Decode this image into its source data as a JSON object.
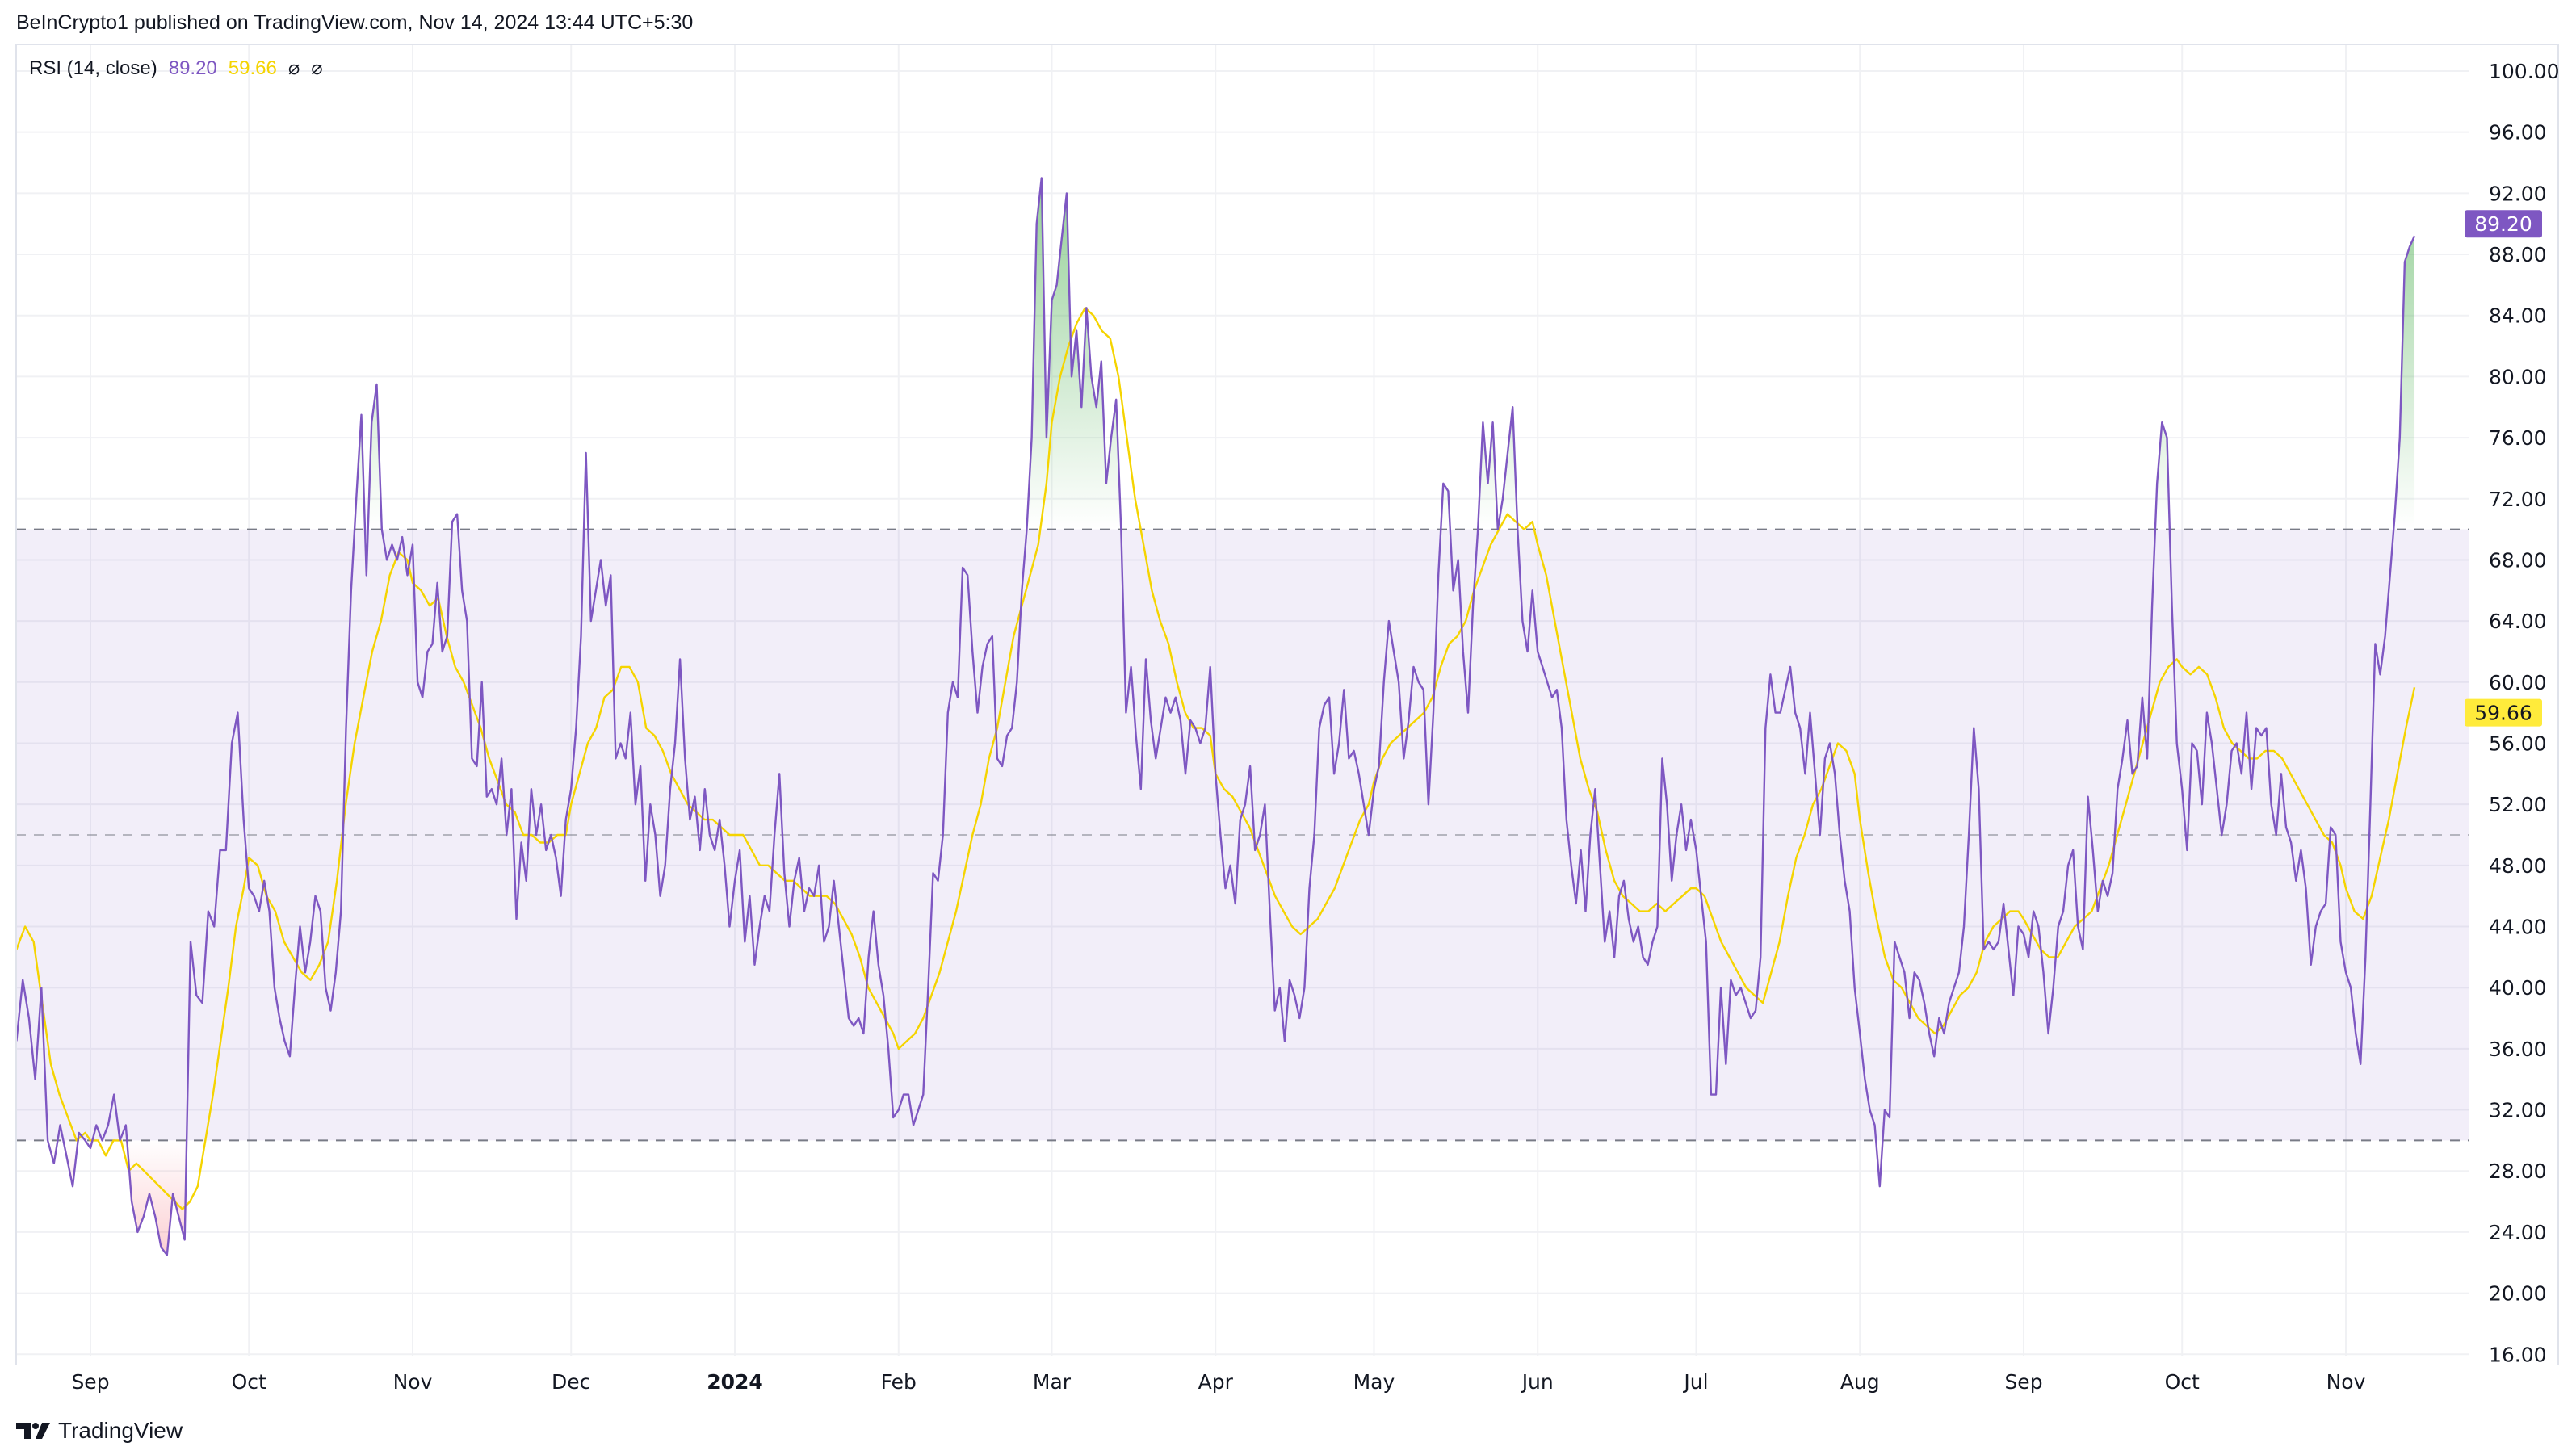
{
  "header": {
    "text": "BeInCrypto1 published on TradingView.com, Nov 14, 2024 13:44 UTC+5:30"
  },
  "legend": {
    "title": "RSI (14, close)",
    "rsi_value": "89.20",
    "ma_value": "59.66",
    "symbols": [
      "⌀",
      "⌀"
    ]
  },
  "logo": {
    "text": "TradingView",
    "icon": "tradingview-logo-icon"
  },
  "colors": {
    "rsi": "#7e57c2",
    "ma": "#f5d400",
    "band": "#7e57c2",
    "overbought_fill": "#4caf50",
    "oversold_fill": "#f23645",
    "grid": "#f0f1f4"
  },
  "chart_data": {
    "type": "line",
    "title": "RSI (14, close)",
    "x_range": [
      "2023-08-18",
      "2024-11-14"
    ],
    "ylim": [
      16,
      100
    ],
    "grid": true,
    "bands": {
      "upper": 70,
      "middle": 50,
      "lower": 30
    },
    "y_ticks": [
      "100.00",
      "96.00",
      "92.00",
      "88.00",
      "84.00",
      "80.00",
      "76.00",
      "72.00",
      "68.00",
      "64.00",
      "60.00",
      "56.00",
      "52.00",
      "48.00",
      "44.00",
      "40.00",
      "36.00",
      "32.00",
      "28.00",
      "24.00",
      "20.00",
      "16.00"
    ],
    "x_ticks": [
      {
        "label": "Sep",
        "date": "2023-09-01"
      },
      {
        "label": "Oct",
        "date": "2023-10-01"
      },
      {
        "label": "Nov",
        "date": "2023-11-01"
      },
      {
        "label": "Dec",
        "date": "2023-12-01"
      },
      {
        "label": "2024",
        "date": "2024-01-01",
        "bold": true
      },
      {
        "label": "Feb",
        "date": "2024-02-01"
      },
      {
        "label": "Mar",
        "date": "2024-03-01"
      },
      {
        "label": "Apr",
        "date": "2024-04-01"
      },
      {
        "label": "May",
        "date": "2024-05-01"
      },
      {
        "label": "Jun",
        "date": "2024-06-01"
      },
      {
        "label": "Jul",
        "date": "2024-07-01"
      },
      {
        "label": "Aug",
        "date": "2024-08-01"
      },
      {
        "label": "Sep",
        "date": "2024-09-01"
      },
      {
        "label": "Oct",
        "date": "2024-10-01"
      },
      {
        "label": "Nov",
        "date": "2024-11-01"
      }
    ],
    "last_values": {
      "rsi": "89.20",
      "ma": "59.66"
    },
    "series": [
      {
        "key": "rsi",
        "monthly": [
          {
            "month": "2023-08",
            "values": [
              36.5,
              40.5,
              38,
              34,
              40,
              30,
              28.5,
              31,
              29,
              27,
              30.5,
              30
            ]
          },
          {
            "month": "2023-09",
            "values": [
              29.5,
              31,
              30,
              31,
              33,
              30,
              31,
              26,
              24,
              25,
              26.5,
              25,
              23,
              22.5,
              26.5,
              25,
              23.5,
              43,
              39.5,
              39,
              45,
              44,
              49,
              49,
              56,
              58,
              51
            ]
          },
          {
            "month": "2023-10",
            "values": [
              46.5,
              46,
              45,
              47,
              45,
              40,
              38,
              36.5,
              35.5,
              40,
              44,
              41,
              43,
              46,
              45,
              40,
              38.5,
              41,
              45,
              57,
              66,
              72,
              77.5,
              67,
              77,
              79.5,
              70,
              68,
              69,
              68,
              69.5,
              67
            ]
          },
          {
            "month": "2023-11",
            "values": [
              69,
              60,
              59,
              62,
              62.5,
              66.5,
              62,
              63,
              70.5,
              71,
              66,
              64,
              55,
              54.5,
              60,
              52.5,
              53,
              52,
              55,
              50,
              53,
              44.5,
              49.5,
              47,
              53,
              50,
              52,
              49,
              50,
              48.5,
              46,
              51
            ]
          },
          {
            "month": "2023-12",
            "values": [
              53,
              57,
              63,
              75,
              64,
              66,
              68,
              65,
              67,
              55,
              56,
              55,
              58,
              52,
              54.5,
              47,
              52,
              50,
              46,
              48,
              53,
              56,
              61.5,
              55,
              51,
              52.5,
              49,
              53,
              50,
              49,
              51,
              48,
              44
            ]
          },
          {
            "month": "2024-01",
            "values": [
              47,
              49,
              43,
              46,
              41.5,
              44,
              46,
              45,
              50,
              54,
              47.5,
              44,
              47,
              48.5,
              45,
              46.5,
              46,
              48,
              43,
              44,
              47,
              44,
              41,
              38,
              37.5,
              38,
              37,
              42,
              45,
              41.5,
              39.5,
              36,
              31.5
            ]
          },
          {
            "month": "2024-02",
            "values": [
              32,
              33,
              33,
              31,
              32,
              33,
              40,
              47.5,
              47,
              50,
              58,
              60,
              59,
              67.5,
              67,
              62,
              58,
              61,
              62.5,
              63,
              55,
              54.5,
              56.5,
              57,
              60,
              66,
              70,
              76,
              90,
              93,
              76
            ]
          },
          {
            "month": "2024-03",
            "values": [
              85,
              86,
              89,
              92,
              80,
              83,
              78,
              84.5,
              80,
              78,
              81,
              73,
              76,
              78.5,
              70,
              58,
              61,
              56.5,
              53,
              61.5,
              57.5,
              55,
              57,
              59,
              58,
              59,
              57.5,
              54,
              57.5,
              57,
              56,
              57,
              61
            ]
          },
          {
            "month": "2024-04",
            "values": [
              54,
              50,
              46.5,
              48,
              45.5,
              51,
              52,
              54.5,
              49,
              50,
              52,
              45,
              38.5,
              40,
              36.5,
              40.5,
              39.5,
              38,
              40,
              46.5,
              50,
              57,
              58.5,
              59,
              54,
              56,
              59.5,
              55,
              55.5,
              54,
              52,
              50
            ]
          },
          {
            "month": "2024-05",
            "values": [
              53,
              54.5,
              60,
              64,
              62,
              60,
              55,
              57.5,
              61,
              60,
              59.5,
              52,
              58,
              67,
              73,
              72.5,
              66,
              68,
              62,
              58,
              65,
              70,
              77,
              73,
              77,
              70,
              72,
              75,
              78,
              70,
              64,
              62,
              66
            ]
          },
          {
            "month": "2024-06",
            "values": [
              62,
              61,
              60,
              59,
              59.5,
              57,
              51,
              48,
              45.5,
              49,
              45,
              50,
              53,
              48,
              43,
              45,
              42,
              46,
              47,
              44.5,
              43,
              44,
              42,
              41.5,
              43,
              44,
              55,
              52,
              47,
              50,
              52,
              49,
              51
            ]
          },
          {
            "month": "2024-07",
            "values": [
              49,
              46,
              43,
              33,
              33,
              40,
              35,
              40.5,
              39.5,
              40,
              39,
              38,
              38.5,
              42,
              57,
              60.5,
              58,
              58,
              59.5,
              61,
              58,
              57,
              54,
              58,
              54,
              50,
              55,
              56,
              54,
              50,
              47,
              45,
              40
            ]
          },
          {
            "month": "2024-08",
            "values": [
              37,
              34,
              32,
              31,
              27,
              32,
              31.5,
              43,
              42,
              41,
              38,
              41,
              40.5,
              39,
              37,
              35.5,
              38,
              37,
              39,
              40,
              41,
              44,
              50,
              57,
              53,
              42.5,
              43,
              42.5,
              43,
              45.5,
              42.5,
              39.5,
              44
            ]
          },
          {
            "month": "2024-09",
            "values": [
              43.5,
              42,
              45,
              44,
              41,
              37,
              40,
              44,
              45,
              48,
              49,
              44,
              42.5,
              52.5,
              49,
              45,
              47,
              46,
              47.5,
              53,
              55,
              57.5,
              54,
              54.5,
              59,
              55,
              65,
              73,
              77,
              76,
              65,
              56
            ]
          },
          {
            "month": "2024-10",
            "values": [
              53,
              49,
              56,
              55.5,
              52,
              58,
              56,
              53,
              50,
              52,
              55.5,
              56,
              54,
              58,
              53,
              57,
              56.5,
              57,
              52,
              50,
              54,
              50.5,
              49.5,
              47,
              49,
              46.5,
              41.5,
              44,
              45,
              45.5,
              50.5,
              50,
              43
            ]
          },
          {
            "month": "2024-11",
            "values": [
              41,
              40,
              37,
              35,
              42,
              52,
              62.5,
              60.5,
              63,
              67,
              71,
              76,
              87.5,
              88.5,
              89.2
            ]
          }
        ]
      },
      {
        "key": "ma",
        "monthly": [
          {
            "month": "2023-08",
            "values": [
              42.5,
              44,
              43,
              39,
              35,
              33,
              31.5,
              30,
              30.5
            ]
          },
          {
            "month": "2023-09",
            "values": [
              30,
              30,
              29,
              30,
              30,
              28,
              28.5,
              28,
              27.5,
              27,
              26.5,
              26,
              25.5,
              26,
              27,
              30,
              33,
              36.5,
              40,
              44,
              46.5
            ]
          },
          {
            "month": "2023-10",
            "values": [
              48.5,
              48,
              46,
              45,
              43,
              42,
              41,
              40.5,
              41.5,
              43,
              47,
              52,
              56,
              59,
              62,
              64,
              67,
              68.5,
              68
            ]
          },
          {
            "month": "2023-11",
            "values": [
              66.5,
              66,
              65,
              65.5,
              63,
              61,
              60,
              58.5,
              57,
              55,
              53.5,
              52,
              51.5,
              50,
              50,
              49.5,
              49.5,
              50,
              50
            ]
          },
          {
            "month": "2023-12",
            "values": [
              52,
              54,
              56,
              57,
              59,
              59.5,
              61,
              61,
              60,
              57,
              56.5,
              55.5,
              54,
              53,
              52,
              51.5,
              51,
              51,
              50.5,
              50
            ]
          },
          {
            "month": "2024-01",
            "values": [
              50,
              50,
              49,
              48,
              48,
              47.5,
              47,
              47,
              46.5,
              46,
              46,
              46,
              45.5,
              44.5,
              43.5,
              42,
              40,
              39,
              38,
              37
            ]
          },
          {
            "month": "2024-02",
            "values": [
              36,
              36.5,
              37,
              38,
              39.5,
              41,
              43,
              45,
              47.5,
              50,
              52,
              55,
              57,
              60,
              63,
              65,
              67,
              69,
              73
            ]
          },
          {
            "month": "2024-03",
            "values": [
              77,
              80,
              82,
              83.5,
              84.5,
              84,
              83,
              82.5,
              80,
              76,
              72,
              69,
              66,
              64,
              62.5,
              60,
              58,
              57,
              57,
              56.5
            ]
          },
          {
            "month": "2024-04",
            "values": [
              54,
              53,
              52.5,
              51.5,
              50.5,
              49,
              47.5,
              46,
              45,
              44,
              43.5,
              44,
              44.5,
              45.5,
              46.5,
              48,
              49.5,
              51,
              52
            ]
          },
          {
            "month": "2024-05",
            "values": [
              53.5,
              55,
              56,
              56.5,
              57,
              57.5,
              58,
              59,
              61,
              62.5,
              63,
              64,
              66,
              67.5,
              69,
              70,
              71,
              70.5,
              70,
              70.5
            ]
          },
          {
            "month": "2024-06",
            "values": [
              69,
              67,
              64,
              61,
              58,
              55,
              53,
              51.5,
              49,
              47,
              46,
              45.5,
              45,
              45,
              45.5,
              45,
              45.5,
              46,
              46.5
            ]
          },
          {
            "month": "2024-07",
            "values": [
              46.5,
              46,
              44.5,
              43,
              42,
              41,
              40,
              39.5,
              39,
              41,
              43,
              46,
              48.5,
              50,
              52,
              53,
              54.5,
              56,
              55.5,
              54
            ]
          },
          {
            "month": "2024-08",
            "values": [
              51,
              47.5,
              44.5,
              42,
              40.5,
              40,
              39,
              38,
              37.5,
              37,
              37.5,
              38.5,
              39.5,
              40,
              41,
              43,
              44,
              44.5,
              45,
              45
            ]
          },
          {
            "month": "2024-09",
            "values": [
              44.5,
              43.5,
              42.5,
              42,
              42,
              43,
              44,
              44.5,
              45,
              46.5,
              48,
              50,
              52,
              54,
              56,
              58,
              60,
              61,
              61.5
            ]
          },
          {
            "month": "2024-10",
            "values": [
              61,
              60.5,
              61,
              60.5,
              59,
              57,
              56,
              55.5,
              55,
              55,
              55.5,
              55.5,
              55,
              54,
              53,
              52,
              51,
              50,
              49.5,
              48
            ]
          },
          {
            "month": "2024-11",
            "values": [
              46.5,
              45,
              44.5,
              46,
              48.5,
              51,
              54,
              57,
              59.66
            ]
          }
        ]
      }
    ]
  }
}
